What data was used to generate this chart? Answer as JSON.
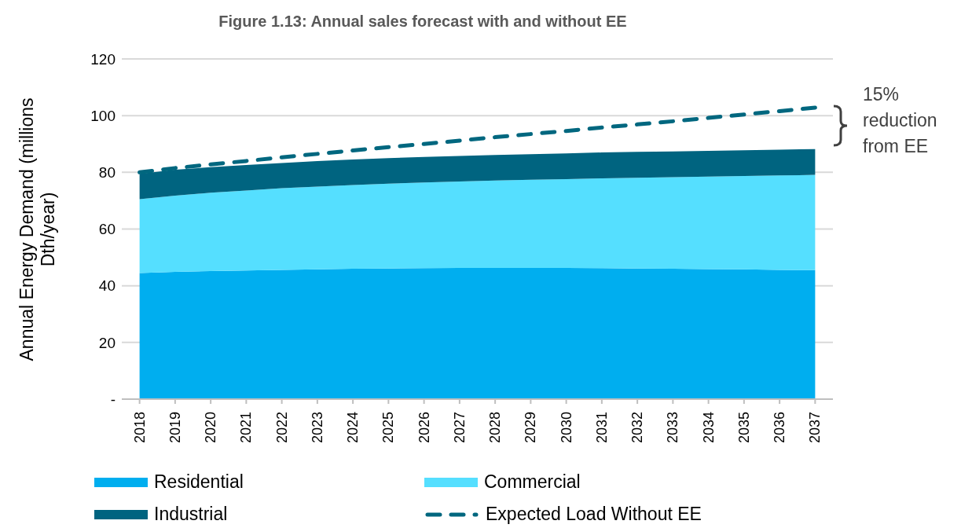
{
  "chart_data": {
    "type": "area",
    "title": "Figure 1.13: Annual sales forecast with and without EE",
    "ylabel": "Annual Energy Demand (millions Dth/year)",
    "annotations": [
      "15% reduction from EE"
    ],
    "categories": [
      "2018",
      "2019",
      "2020",
      "2021",
      "2022",
      "2023",
      "2024",
      "2025",
      "2026",
      "2027",
      "2028",
      "2029",
      "2030",
      "2031",
      "2032",
      "2033",
      "2034",
      "2035",
      "2036",
      "2037"
    ],
    "stacked": true,
    "grid": "y",
    "legend": "bottom",
    "line_style": "dashed",
    "ylim": [
      0,
      120
    ],
    "yticks": [
      {
        "value": 0,
        "label": "-"
      },
      20,
      40,
      60,
      80,
      100,
      120
    ],
    "series": [
      {
        "name": "Residential",
        "color": "#00aeef",
        "values": [
          44.5,
          44.9,
          45.2,
          45.4,
          45.6,
          45.8,
          46.0,
          46.1,
          46.2,
          46.3,
          46.3,
          46.3,
          46.3,
          46.2,
          46.1,
          46.0,
          45.9,
          45.8,
          45.6,
          45.5
        ]
      },
      {
        "name": "Commercial",
        "color": "#55dfff",
        "values": [
          26.0,
          26.9,
          27.6,
          28.2,
          28.8,
          29.2,
          29.5,
          29.9,
          30.2,
          30.5,
          30.8,
          31.1,
          31.3,
          31.7,
          32.0,
          32.3,
          32.6,
          32.9,
          33.3,
          33.6
        ]
      },
      {
        "name": "Industrial",
        "color": "#006480",
        "values": [
          9.0,
          9.1,
          9.0,
          9.0,
          8.9,
          9.0,
          9.0,
          9.0,
          9.0,
          9.0,
          9.0,
          9.0,
          9.1,
          9.1,
          9.1,
          9.1,
          9.1,
          9.1,
          9.1,
          9.1
        ]
      },
      {
        "name": "Expected Load Without EE",
        "type": "line",
        "color": "#00677f",
        "values": [
          80,
          81.5,
          82.8,
          84.0,
          85.3,
          86.5,
          87.7,
          88.9,
          90.0,
          91.2,
          92.4,
          93.5,
          94.6,
          95.8,
          96.9,
          98.0,
          99.2,
          100.4,
          101.6,
          102.8
        ]
      }
    ]
  }
}
